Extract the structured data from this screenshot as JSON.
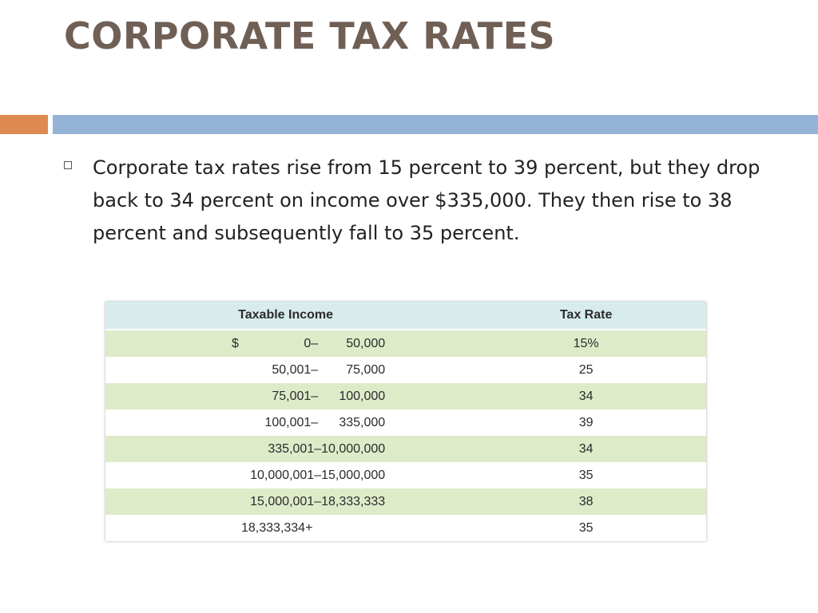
{
  "slide": {
    "title": "CORPORATE TAX RATES",
    "bullet": "Corporate tax rates rise from 15 percent to 39 percent, but they drop back to 34 percent on income over $335,000. They then rise to 38 percent and subsequently fall to 35 percent."
  },
  "colors": {
    "title": "#6f5f55",
    "accent_bar": "#dd8a51",
    "main_bar": "#95b3d7",
    "table_header": "#d8ecee",
    "table_stripe": "#deebc9"
  },
  "table": {
    "headers": {
      "income": "Taxable Income",
      "rate": "Tax Rate"
    },
    "rows": [
      {
        "dollar": "$",
        "lower": "0–",
        "upper": "50,000",
        "rate": "15%"
      },
      {
        "lower": "50,001–",
        "upper": "75,000",
        "rate": "25"
      },
      {
        "lower": "75,001–",
        "upper": "100,000",
        "rate": "34"
      },
      {
        "lower": "100,001–",
        "upper": "335,000",
        "rate": "39"
      },
      {
        "range": "335,001–10,000,000",
        "rate": "34"
      },
      {
        "range": "10,000,001–15,000,000",
        "rate": "35"
      },
      {
        "range": "15,000,001–18,333,333",
        "rate": "38"
      },
      {
        "full": "18,333,334+",
        "rate": "35"
      }
    ]
  }
}
